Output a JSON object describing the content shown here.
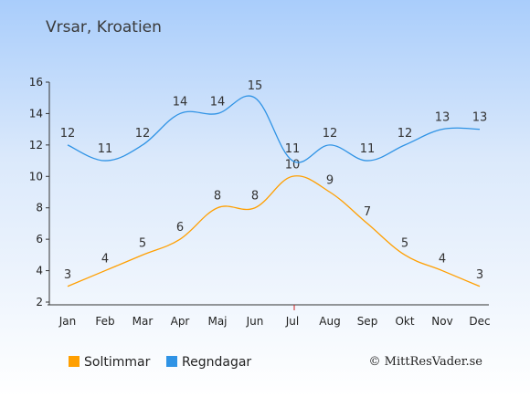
{
  "title": "Vrsar, Kroatien",
  "credit": "© MittResVader.se",
  "chart_data": {
    "type": "line",
    "categories": [
      "Jan",
      "Feb",
      "Mar",
      "Apr",
      "Maj",
      "Jun",
      "Jul",
      "Aug",
      "Sep",
      "Okt",
      "Nov",
      "Dec"
    ],
    "series": [
      {
        "name": "Soltimmar",
        "color": "#ff9f00",
        "values": [
          3,
          4,
          5,
          6,
          8,
          8,
          10,
          9,
          7,
          5,
          4,
          3
        ]
      },
      {
        "name": "Regndagar",
        "color": "#2f93e5",
        "values": [
          12,
          11,
          12,
          14,
          14,
          15,
          11,
          12,
          11,
          12,
          13,
          13
        ]
      }
    ],
    "yticks": [
      2,
      4,
      6,
      8,
      10,
      12,
      14,
      16
    ],
    "ylim": [
      2,
      16
    ],
    "grid": false,
    "legend_position": "bottom-left"
  }
}
